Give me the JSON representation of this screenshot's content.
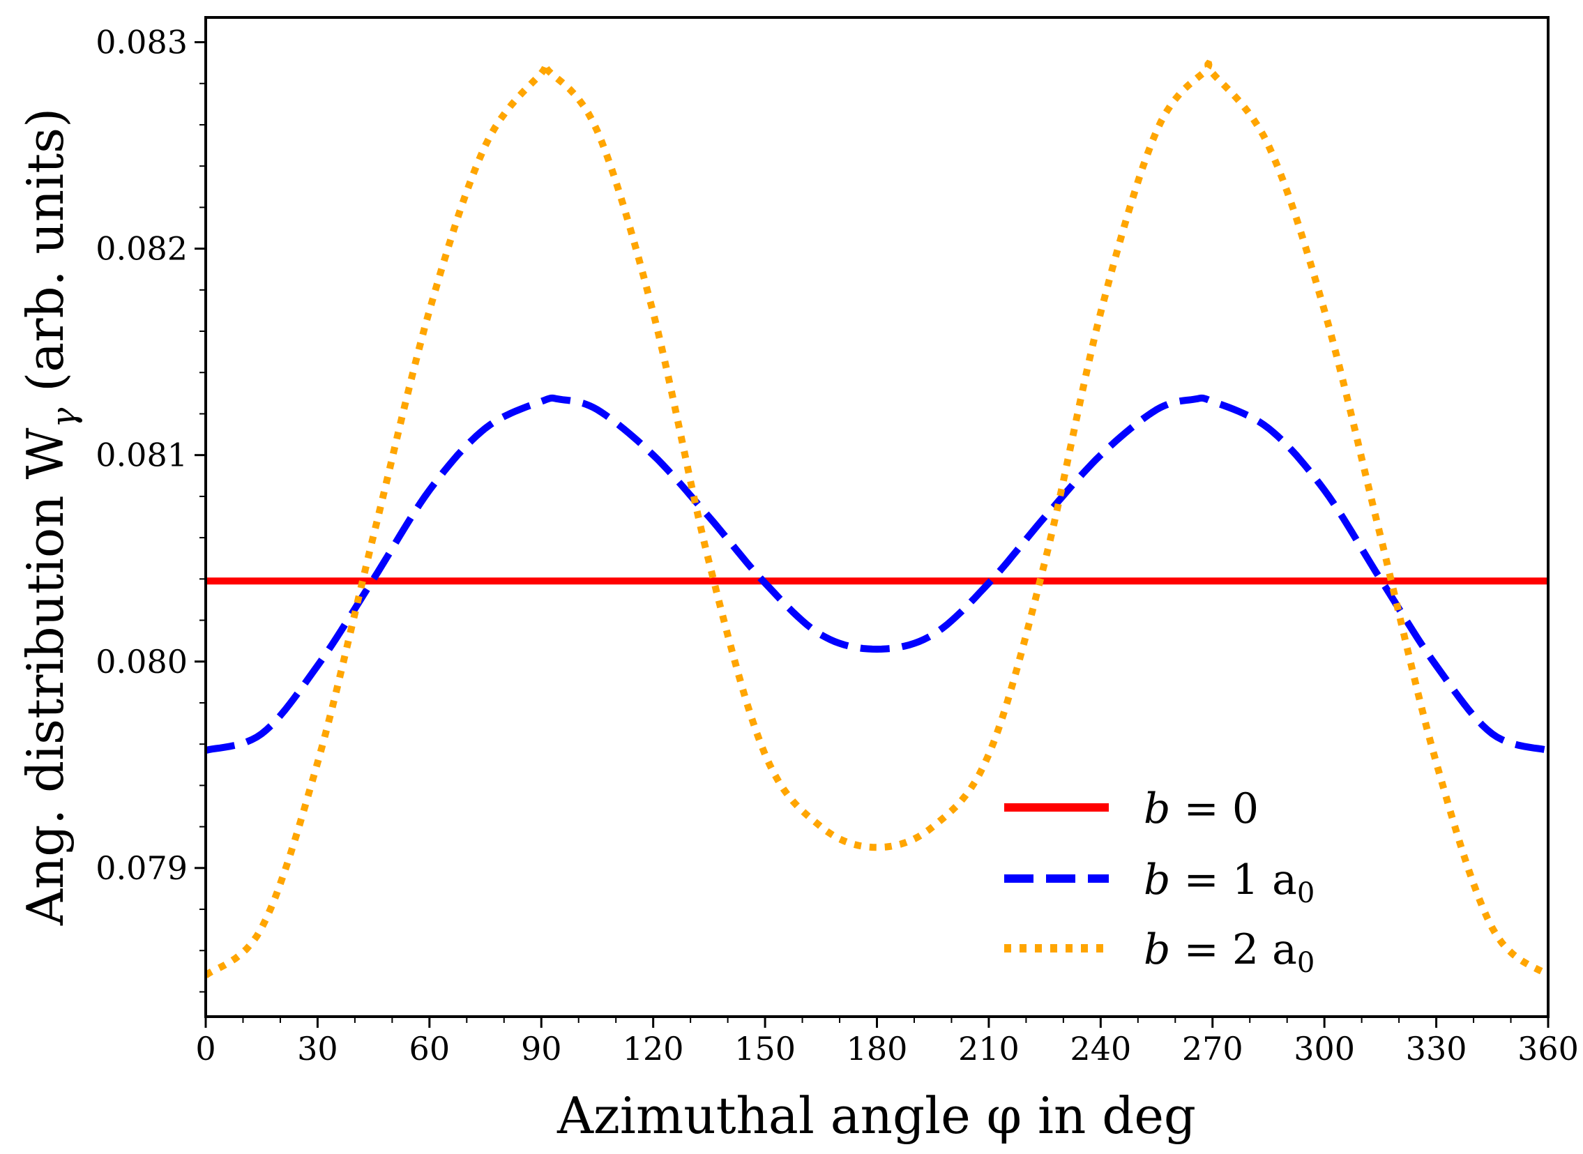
{
  "chart_data": {
    "type": "line",
    "x_ticks": [
      0,
      30,
      60,
      90,
      120,
      150,
      180,
      210,
      240,
      270,
      300,
      330,
      360
    ],
    "x_tick_labels": [
      "0",
      "30",
      "60",
      "90",
      "120",
      "150",
      "180",
      "210",
      "240",
      "270",
      "300",
      "330",
      "360"
    ],
    "y_ticks": [
      0.079,
      0.08,
      0.081,
      0.082,
      0.083
    ],
    "y_tick_labels": [
      "0.079",
      "0.080",
      "0.081",
      "0.082",
      "0.083"
    ],
    "xlim": [
      0,
      360
    ],
    "ylim": [
      0.07828,
      0.08312
    ],
    "xlabel": "Azimuthal angle φ in deg",
    "ylabel_prefix": "Ang. distribution W",
    "ylabel_sub": "γ",
    "ylabel_suffix": "(arb. units)",
    "legend_position": "lower-right",
    "series": [
      {
        "name": "b = 0",
        "label_var": "b",
        "label_rest": " = 0",
        "label_sub": "",
        "color": "#ff0000",
        "style": "solid",
        "x": [
          0,
          360
        ],
        "y": [
          0.08039,
          0.08039
        ]
      },
      {
        "name": "b = 1 a0",
        "label_var": "b",
        "label_rest": " = 1 a",
        "label_sub": "0",
        "color": "#0000ff",
        "style": "dashed",
        "x": [
          0,
          15,
          30,
          45,
          60,
          75,
          90,
          95,
          105,
          120,
          135,
          150,
          165,
          180,
          195,
          210,
          225,
          240,
          255,
          265,
          270,
          285,
          300,
          315,
          330,
          345,
          360
        ],
        "y": [
          0.07957,
          0.07965,
          0.07998,
          0.0804,
          0.08083,
          0.08113,
          0.08126,
          0.08127,
          0.08122,
          0.081,
          0.0807,
          0.08038,
          0.08013,
          0.08006,
          0.08013,
          0.08038,
          0.0807,
          0.081,
          0.08122,
          0.08127,
          0.08126,
          0.08113,
          0.08083,
          0.0804,
          0.07998,
          0.07965,
          0.07957
        ]
      },
      {
        "name": "b = 2 a0",
        "label_var": "b",
        "label_rest": " = 2 a",
        "label_sub": "0",
        "color": "#ffa500",
        "style": "dotted",
        "x": [
          0,
          15,
          30,
          45,
          60,
          75,
          90,
          92,
          105,
          120,
          135,
          150,
          165,
          180,
          195,
          210,
          225,
          240,
          255,
          268,
          270,
          285,
          300,
          315,
          330,
          345,
          360
        ],
        "y": [
          0.07848,
          0.07871,
          0.07951,
          0.08061,
          0.0817,
          0.0825,
          0.08285,
          0.08286,
          0.08257,
          0.08169,
          0.08048,
          0.07955,
          0.0792,
          0.0791,
          0.0792,
          0.07955,
          0.08048,
          0.08169,
          0.08257,
          0.08286,
          0.08285,
          0.0825,
          0.0817,
          0.08061,
          0.07951,
          0.07871,
          0.07848
        ]
      }
    ]
  }
}
